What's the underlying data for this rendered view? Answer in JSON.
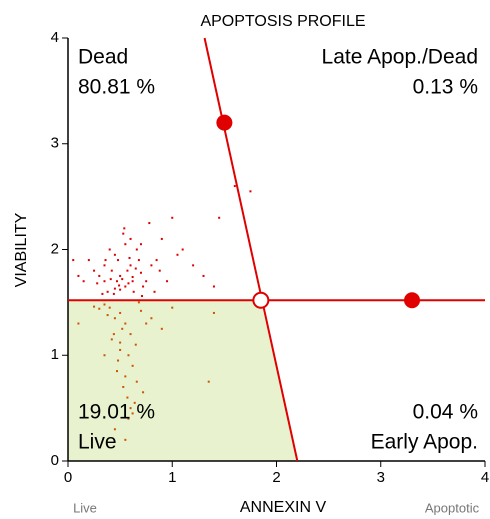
{
  "chart_data": {
    "type": "scatter",
    "title": "APOPTOSIS PROFILE",
    "x_label": "ANNEXIN V",
    "y_label": "VIABILITY",
    "x_end_labels": [
      "Live",
      "Apoptotic"
    ],
    "xlim": [
      0,
      4
    ],
    "ylim": [
      0,
      4
    ],
    "xticks": [
      0,
      1,
      2,
      3,
      4
    ],
    "yticks": [
      0,
      1,
      2,
      3,
      4
    ],
    "quadrants": {
      "top_left": [
        "Dead",
        "80.81 %"
      ],
      "top_right": [
        "Late Apop./Dead",
        "0.13 %"
      ],
      "bottom_left": [
        "19.01 %",
        "Live"
      ],
      "bottom_right": [
        "0.04 %",
        "Early Apop."
      ]
    },
    "gate_color": "#e00000",
    "live_fill": "#e8f2cf",
    "gate_y": 1.52,
    "gate_line": {
      "x": [
        1.31,
        2.2
      ],
      "y": [
        4,
        0
      ]
    },
    "gate_corner": {
      "x": 1.85,
      "y": 1.52
    },
    "gate_handles": {
      "x": [
        1.5,
        3.3
      ],
      "y": [
        3.2,
        1.52
      ]
    },
    "series": [
      {
        "color": "#dd0000",
        "x": [
          0.35,
          0.42,
          0.5,
          0.55,
          0.6,
          0.48,
          0.62,
          0.7,
          0.38,
          0.45,
          0.52,
          0.58,
          0.65,
          0.3,
          0.4,
          0.55,
          0.75,
          0.68,
          0.5,
          0.44,
          0.6,
          0.72,
          0.35,
          0.57,
          0.63,
          0.47,
          0.53,
          0.8,
          0.28,
          0.66,
          0.41,
          0.59,
          0.49,
          0.71,
          0.36,
          0.54,
          0.62,
          0.45,
          0.85,
          0.25,
          0.9,
          1.0,
          0.95,
          1.1,
          1.2,
          1.3,
          0.78,
          0.83,
          0.2,
          0.15,
          1.05,
          1.45,
          1.6,
          1.75,
          1.4,
          0.88,
          0.1,
          0.05,
          0.33,
          0.7
        ],
        "values": [
          1.7,
          1.8,
          1.75,
          1.65,
          1.85,
          1.9,
          1.7,
          1.78,
          1.6,
          1.95,
          1.72,
          1.68,
          1.82,
          1.75,
          2.0,
          2.05,
          1.7,
          1.9,
          1.62,
          1.58,
          2.1,
          1.65,
          1.85,
          1.8,
          1.6,
          1.7,
          2.15,
          1.85,
          1.68,
          2.0,
          1.72,
          1.92,
          1.66,
          1.56,
          1.9,
          2.2,
          1.74,
          1.63,
          1.9,
          1.8,
          2.1,
          2.3,
          1.7,
          2.0,
          1.85,
          1.75,
          2.25,
          1.6,
          1.9,
          1.7,
          1.95,
          2.3,
          2.6,
          2.55,
          1.65,
          1.8,
          1.75,
          1.9,
          1.58,
          2.05
        ]
      },
      {
        "color": "#cc5500",
        "x": [
          0.4,
          0.5,
          0.55,
          0.6,
          0.45,
          0.35,
          0.65,
          0.52,
          0.58,
          0.7,
          0.48,
          0.62,
          0.42,
          0.38,
          0.75,
          0.55,
          0.5,
          0.3,
          0.66,
          0.44,
          0.57,
          0.8,
          0.25,
          0.6,
          0.47,
          0.53,
          0.9,
          0.35,
          0.72,
          0.5,
          0.58,
          0.64,
          0.1,
          1.0,
          0.45,
          0.55,
          1.4,
          1.35,
          0.62,
          0.68
        ],
        "values": [
          1.45,
          1.4,
          1.3,
          1.2,
          1.35,
          1.48,
          1.1,
          1.25,
          1.0,
          1.42,
          0.95,
          0.9,
          1.15,
          1.38,
          1.3,
          0.8,
          1.05,
          1.44,
          0.75,
          1.2,
          0.6,
          1.35,
          1.46,
          0.5,
          0.85,
          0.7,
          1.25,
          1.0,
          0.65,
          1.12,
          0.4,
          0.55,
          1.3,
          1.45,
          0.3,
          0.2,
          1.4,
          0.75,
          0.45,
          1.5
        ]
      }
    ]
  }
}
